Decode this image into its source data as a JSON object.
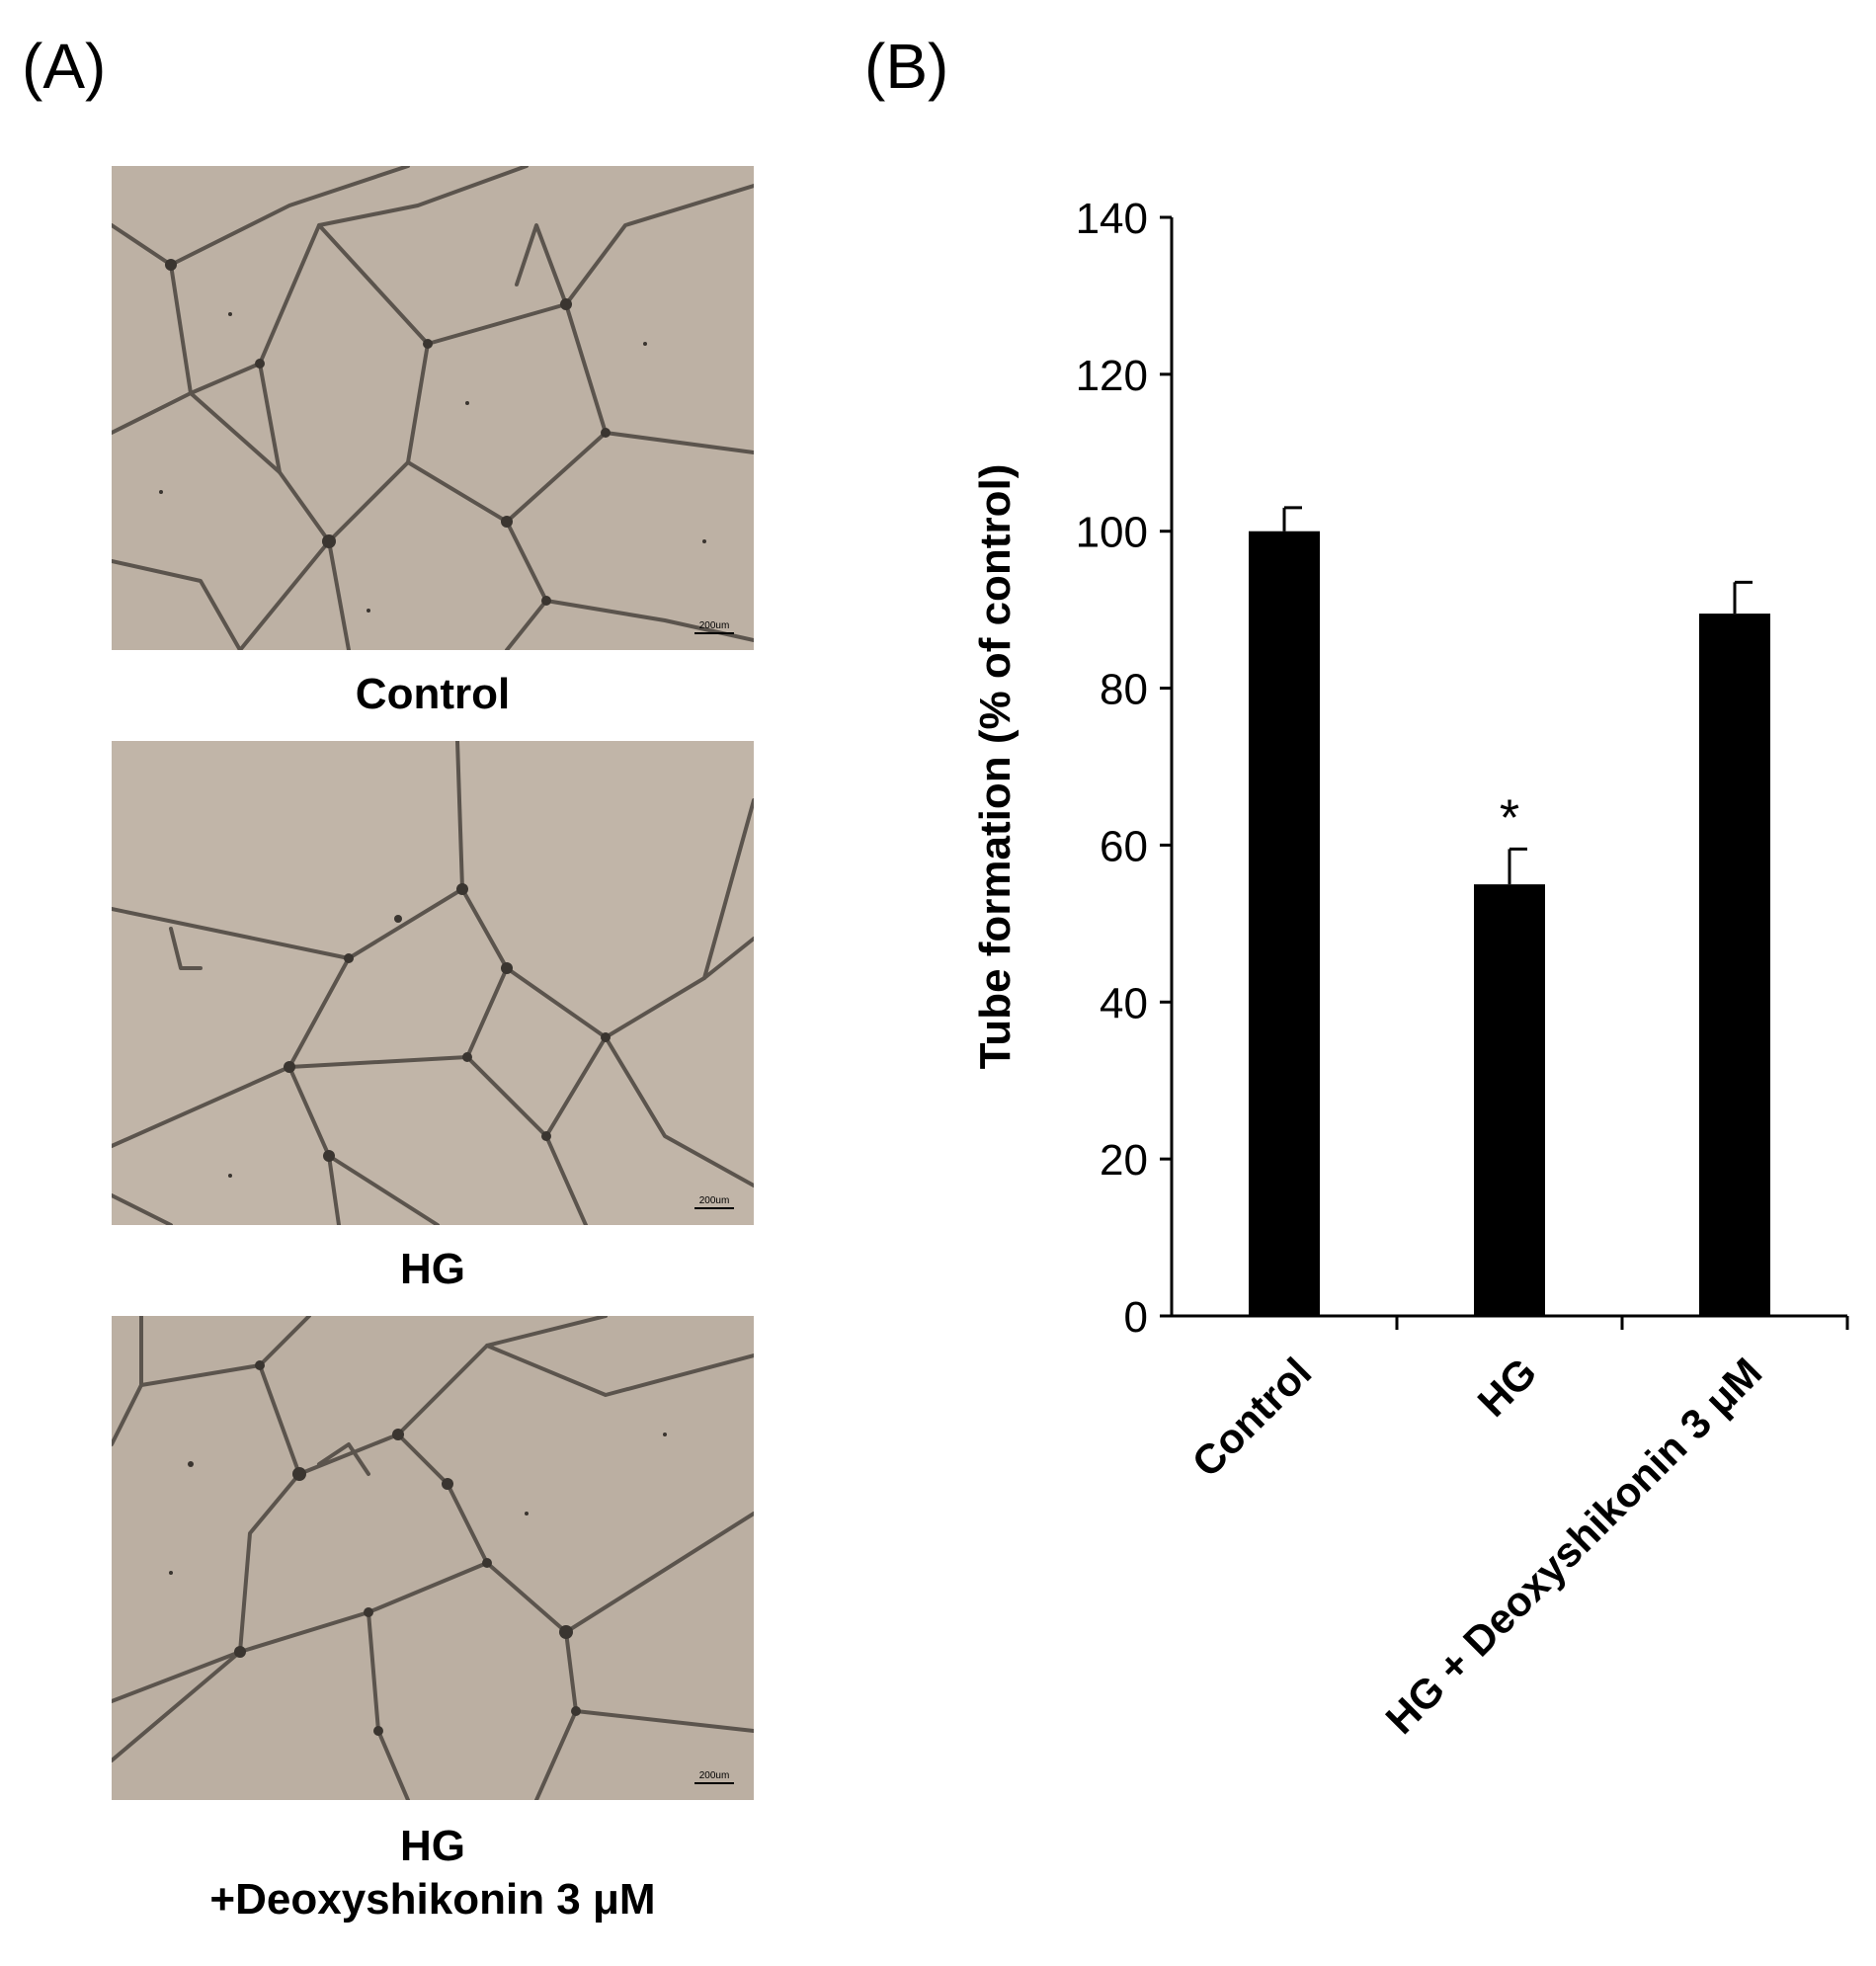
{
  "panels": {
    "a_label": "(A)",
    "b_label": "(B)"
  },
  "micrographs": [
    {
      "caption_lines": [
        "Control"
      ],
      "scale_bar": "200um",
      "background": "#bdb1a4"
    },
    {
      "caption_lines": [
        "HG"
      ],
      "scale_bar": "200um",
      "background": "#c1b5a8"
    },
    {
      "caption_lines": [
        "HG",
        "+Deoxyshikonin 3 μM"
      ],
      "scale_bar": "200um",
      "background": "#bbafa2"
    }
  ],
  "chart_data": {
    "type": "bar",
    "categories": [
      "Control",
      "HG",
      "HG + Deoxyshikonin 3 μM"
    ],
    "values": [
      100,
      55,
      89.5
    ],
    "errors": [
      3,
      4.5,
      4
    ],
    "annotations": [
      "",
      "*",
      ""
    ],
    "ylabel": "Tube formation (% of control)",
    "xlabel": "",
    "ylim": [
      0,
      140
    ],
    "yticks": [
      0,
      20,
      40,
      60,
      80,
      100,
      120,
      140
    ],
    "bar_color": "#000000",
    "grid": false
  }
}
